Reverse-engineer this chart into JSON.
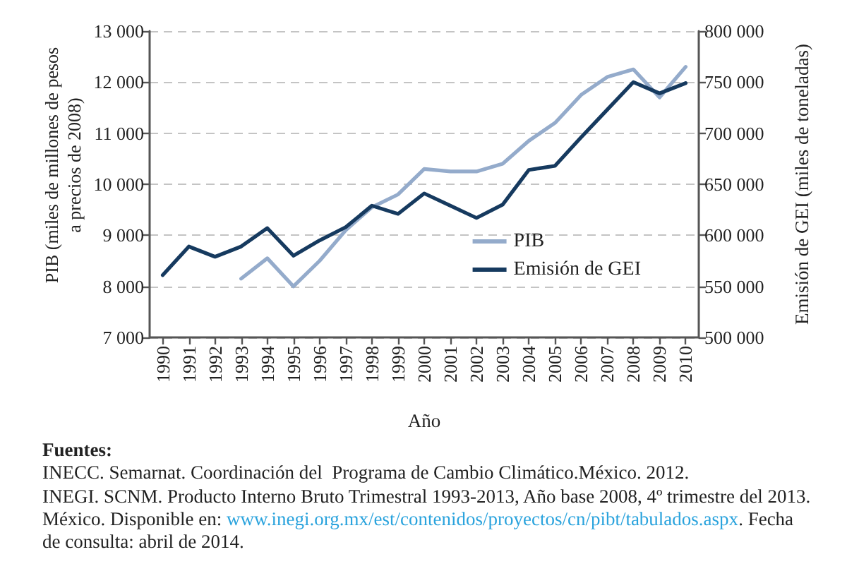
{
  "chart_data": {
    "type": "line",
    "categories": [
      "1990",
      "1991",
      "1992",
      "1993",
      "1994",
      "1995",
      "1996",
      "1997",
      "1998",
      "1999",
      "2000",
      "2001",
      "2002",
      "2003",
      "2004",
      "2005",
      "2006",
      "2007",
      "2008",
      "2009",
      "2010"
    ],
    "series": [
      {
        "name": "PIB",
        "color": "#94abcb",
        "values": [
          null,
          null,
          null,
          8150,
          8550,
          8000,
          8500,
          9100,
          9550,
          9800,
          10300,
          10250,
          10250,
          10400,
          10850,
          11200,
          11750,
          12100,
          12250,
          11700,
          12300
        ]
      },
      {
        "name": "Emisión de GEI",
        "color": "#163a5f",
        "axis": "y2",
        "values": [
          561000,
          589000,
          579000,
          589000,
          607000,
          580000,
          595000,
          608000,
          629000,
          621000,
          641000,
          629000,
          617000,
          630000,
          664000,
          668000,
          696000,
          723000,
          750000,
          739000,
          749000
        ]
      }
    ],
    "xlabel": "Año",
    "ylabel": "PIB (miles de millones de pesos a precios de 2008)",
    "y2label": "Emisión de GEI (miles de toneladas)",
    "ylim": [
      7000,
      13000
    ],
    "yticks": [
      {
        "value": 7000,
        "label": "7 000"
      },
      {
        "value": 8000,
        "label": "8 000"
      },
      {
        "value": 9000,
        "label": "9 000"
      },
      {
        "value": 10000,
        "label": "10 000"
      },
      {
        "value": 11000,
        "label": "11 000"
      },
      {
        "value": 12000,
        "label": "12 000"
      },
      {
        "value": 13000,
        "label": "13 000"
      }
    ],
    "y2lim": [
      500000,
      800000
    ],
    "y2ticks": [
      {
        "value": 500000,
        "label": "500 000"
      },
      {
        "value": 550000,
        "label": "550 000"
      },
      {
        "value": 600000,
        "label": "600 000"
      },
      {
        "value": 650000,
        "label": "650 000"
      },
      {
        "value": 700000,
        "label": "700 000"
      },
      {
        "value": 750000,
        "label": "750 000"
      },
      {
        "value": 800000,
        "label": "800 000"
      }
    ],
    "grid": "y",
    "legend": "bottom right",
    "marker": "none",
    "line_style": "solid",
    "annotations": [
      "Fuentes:",
      "INECC. Semarnat. Coordinación del  Programa de Cambio Climático.México. 2012.",
      "INEGI. SCNM. Producto Interno Bruto Trimestral 1993-2013, Año base 2008, 4º trimestre del 2013. México. Disponible en: www.inegi.org.mx/est/contenidos/proyectos/cn/pibt/tabulados.aspx. Fecha de consulta: abril de 2014."
    ]
  }
}
